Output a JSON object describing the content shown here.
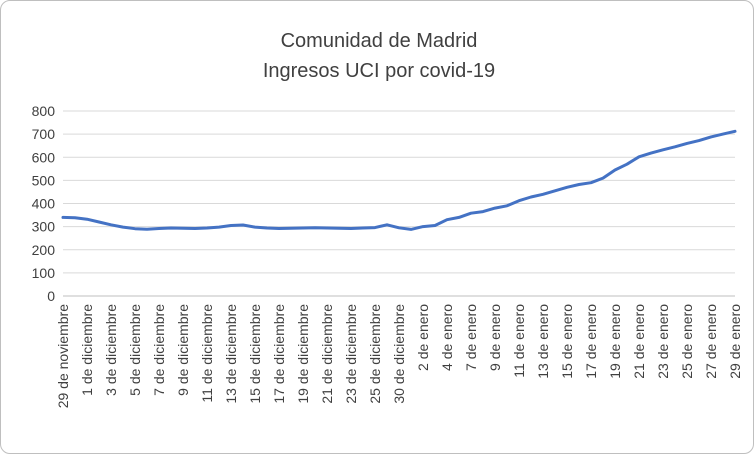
{
  "chart_data": {
    "type": "line",
    "title_lines": [
      "Comunidad de Madrid",
      "Ingresos UCI por covid-19"
    ],
    "xlabel": "",
    "ylabel": "",
    "ylim": [
      0,
      800
    ],
    "y_tick_step": 100,
    "grid": true,
    "legend_position": "none",
    "line_color": "#4472C4",
    "grid_color": "#d9d9d9",
    "axis_line_color": "#bfbfbf",
    "axis_text_color": "#404040",
    "title_color": "#404040",
    "label_every": 2,
    "x_tick_labels": [
      "29 de noviembre",
      "1 de diciembre",
      "3 de diciembre",
      "5 de diciembre",
      "7 de diciembre",
      "9 de diciembre",
      "11 de diciembre",
      "13 de diciembre",
      "15 de diciembre",
      "17 de diciembre",
      "19 de diciembre",
      "21 de diciembre",
      "23 de diciembre",
      "25 de diciembre",
      "30 de diciembre",
      "2 de enero",
      "4 de enero",
      "7 de enero",
      "9 de enero",
      "11 de enero",
      "13 de enero",
      "15 de enero",
      "17 de enero",
      "19 de enero",
      "21 de enero",
      "23 de enero",
      "25 de enero",
      "27 de enero",
      "29 de enero"
    ],
    "series": [
      {
        "name": "Ingresos UCI por covid-19",
        "values": [
          340,
          338,
          332,
          320,
          308,
          298,
          291,
          289,
          292,
          294,
          293,
          292,
          294,
          298,
          305,
          307,
          298,
          294,
          292,
          293,
          294,
          295,
          294,
          293,
          292,
          294,
          296,
          308,
          295,
          288,
          300,
          305,
          330,
          340,
          358,
          365,
          380,
          390,
          412,
          428,
          440,
          455,
          470,
          482,
          490,
          510,
          545,
          570,
          602,
          618,
          632,
          645,
          660,
          672,
          688,
          700,
          712
        ]
      }
    ]
  }
}
